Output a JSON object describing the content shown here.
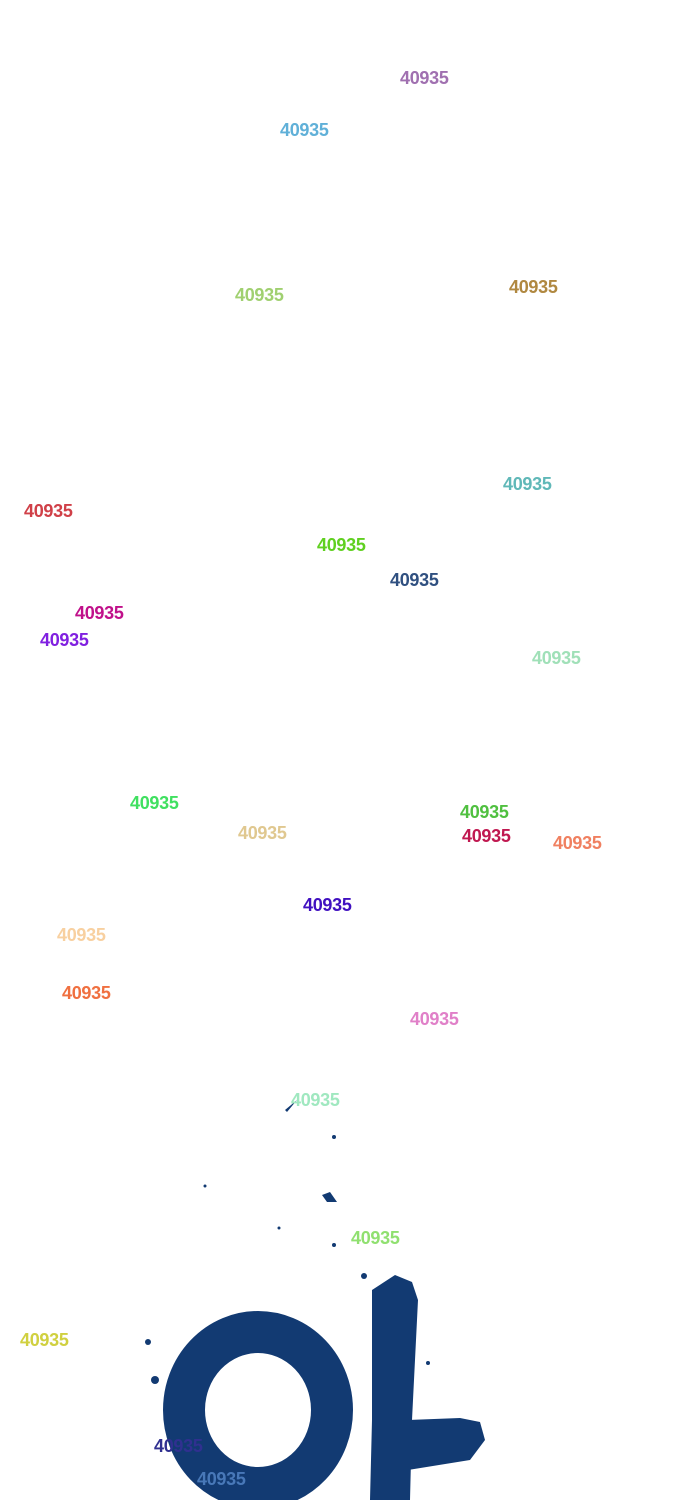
{
  "artwork": {
    "glyph": "아",
    "color": "#123a72"
  },
  "labels": [
    {
      "text": "40935",
      "color": "#a070b0"
    },
    {
      "text": "40935",
      "color": "#60b0d8"
    },
    {
      "text": "40935",
      "color": "#a0d070"
    },
    {
      "text": "40935",
      "color": "#b08840"
    },
    {
      "text": "40935",
      "color": "#60b8b8"
    },
    {
      "text": "40935",
      "color": "#d04048"
    },
    {
      "text": "40935",
      "color": "#60d020"
    },
    {
      "text": "40935",
      "color": "#305080"
    },
    {
      "text": "40935",
      "color": "#c0108a"
    },
    {
      "text": "40935",
      "color": "#8020e0"
    },
    {
      "text": "40935",
      "color": "#a0e0b8"
    },
    {
      "text": "40935",
      "color": "#40e060"
    },
    {
      "text": "40935",
      "color": "#e0c890"
    },
    {
      "text": "40935",
      "color": "#50c040"
    },
    {
      "text": "40935",
      "color": "#c01850"
    },
    {
      "text": "40935",
      "color": "#f08060"
    },
    {
      "text": "40935",
      "color": "#4010c0"
    },
    {
      "text": "40935",
      "color": "#f8d0a0"
    },
    {
      "text": "40935",
      "color": "#f07040"
    },
    {
      "text": "40935",
      "color": "#e080c8"
    },
    {
      "text": "40935",
      "color": "#a0e8c0"
    },
    {
      "text": "40935",
      "color": "#90e070"
    },
    {
      "text": "40935",
      "color": "#d0d040"
    },
    {
      "text": "40935",
      "color": "#303090"
    },
    {
      "text": "40935",
      "color": "#4878b8"
    }
  ]
}
